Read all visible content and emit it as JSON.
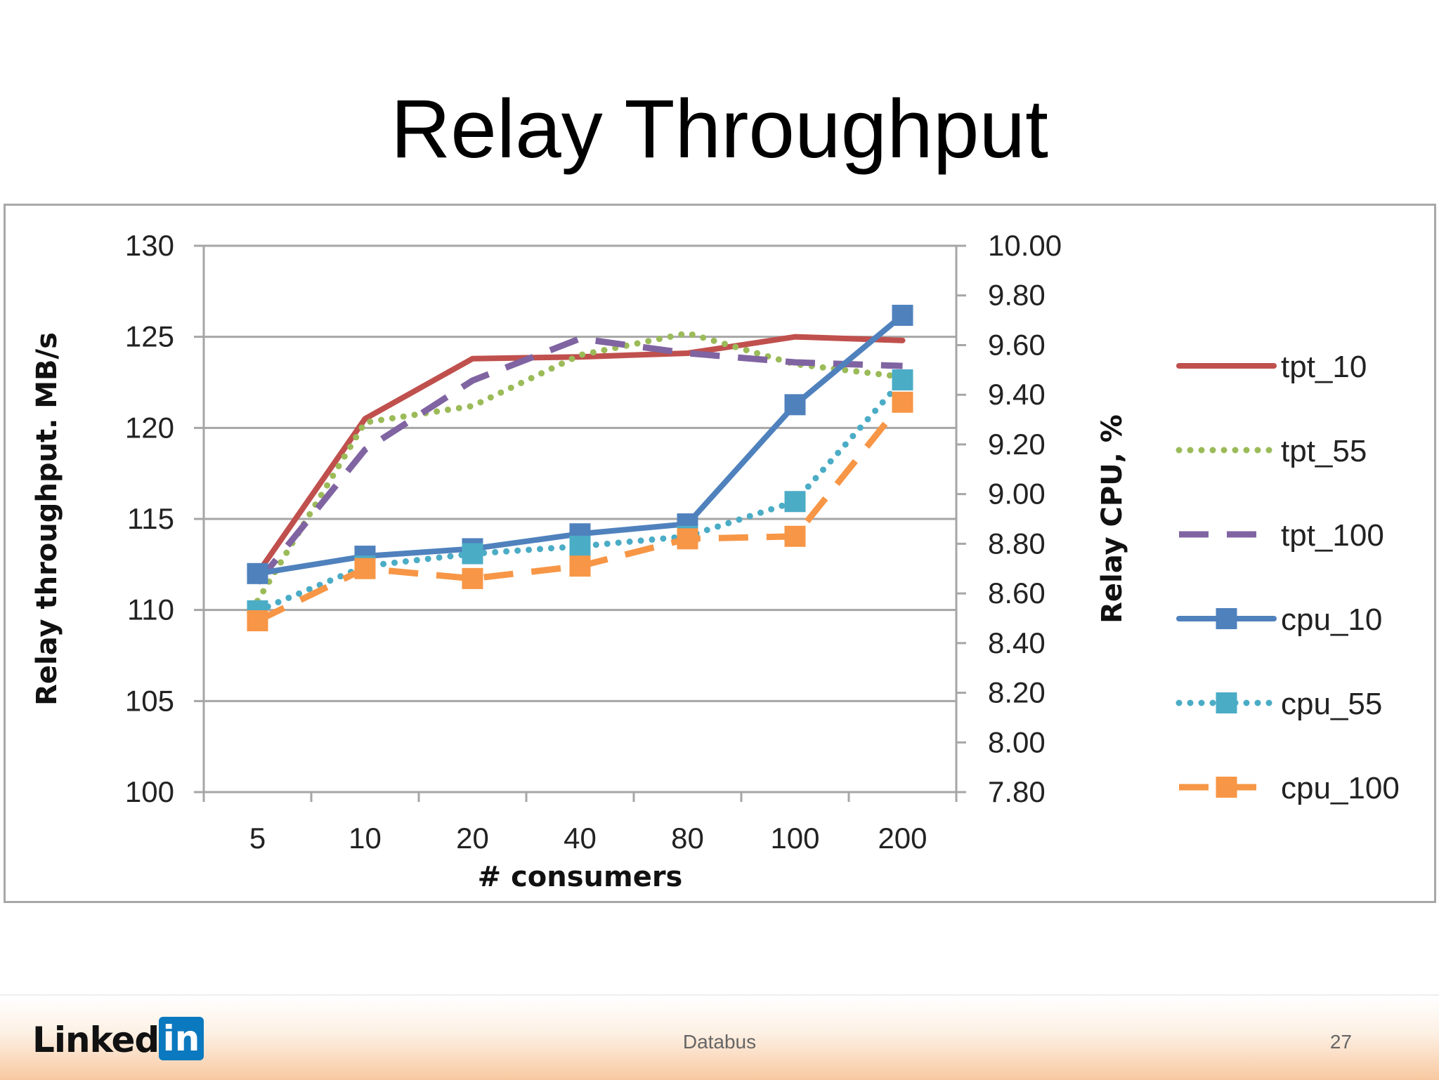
{
  "slide": {
    "title": "Relay Throughput",
    "footer_center": "Databus",
    "page_number": "27",
    "logo": {
      "text": "Linked",
      "badge": "in"
    }
  },
  "chart_data": {
    "type": "line",
    "x_label": "# consumers",
    "y_label_left": "Relay throughput.  MB/s",
    "y_label_right": "Relay CPU, %",
    "categories": [
      "5",
      "10",
      "20",
      "40",
      "80",
      "100",
      "200"
    ],
    "y_left": {
      "min": 100,
      "max": 130,
      "ticks": [
        100,
        105,
        110,
        115,
        120,
        125,
        130
      ]
    },
    "y_right": {
      "min": 7.8,
      "max": 10.0,
      "ticks": [
        "7.80",
        "8.00",
        "8.20",
        "8.40",
        "8.60",
        "8.80",
        "9.00",
        "9.20",
        "9.40",
        "9.60",
        "9.80",
        "10.00"
      ]
    },
    "grid": true,
    "legend_position": "right",
    "series": [
      {
        "name": "tpt_10",
        "axis": "left",
        "color": "#c0504d",
        "style": "solid",
        "marker": "none",
        "values": [
          112,
          120.5,
          123.8,
          123.9,
          124.1,
          125.0,
          124.8
        ]
      },
      {
        "name": "tpt_55",
        "axis": "left",
        "color": "#9bbb59",
        "style": "dotted",
        "marker": "none",
        "values": [
          110.5,
          120.3,
          121.2,
          124.0,
          125.2,
          123.5,
          122.8
        ]
      },
      {
        "name": "tpt_100",
        "axis": "left",
        "color": "#8064a2",
        "style": "dashed",
        "marker": "none",
        "values": [
          111.5,
          118.8,
          122.6,
          124.9,
          124.1,
          123.6,
          123.4
        ]
      },
      {
        "name": "cpu_10",
        "axis": "right",
        "color": "#4f81bd",
        "style": "solid",
        "marker": "square",
        "values": [
          8.68,
          8.75,
          8.78,
          8.84,
          8.88,
          9.36,
          9.72
        ]
      },
      {
        "name": "cpu_55",
        "axis": "right",
        "color": "#4bacc6",
        "style": "dotted",
        "marker": "square",
        "values": [
          8.53,
          8.71,
          8.76,
          8.79,
          8.83,
          8.97,
          9.46
        ]
      },
      {
        "name": "cpu_100",
        "axis": "right",
        "color": "#f79646",
        "style": "dashed",
        "marker": "square",
        "values": [
          8.49,
          8.7,
          8.66,
          8.71,
          8.82,
          8.83,
          9.37
        ]
      }
    ]
  }
}
